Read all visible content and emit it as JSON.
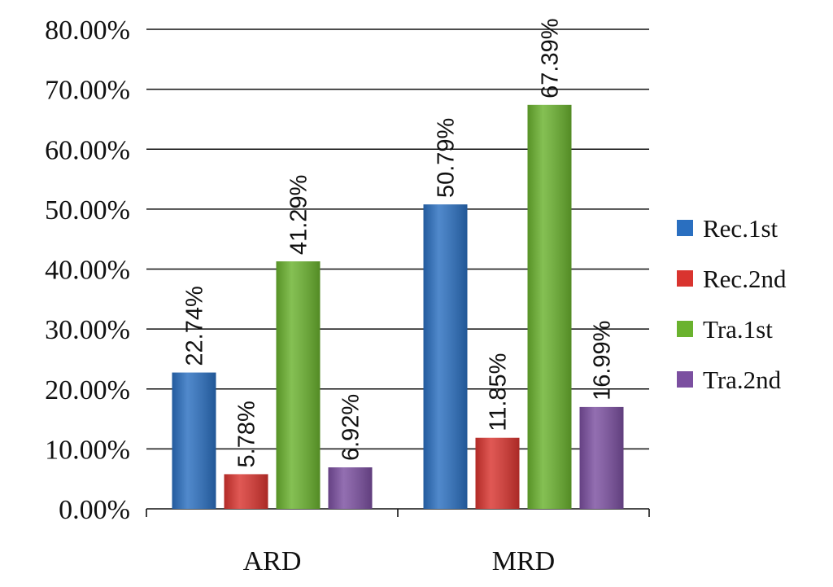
{
  "chart_data": {
    "type": "bar",
    "title": "",
    "xlabel": "",
    "ylabel": "",
    "categories": [
      "ARD",
      "MRD"
    ],
    "series": [
      {
        "name": "Rec.1st",
        "values": [
          22.74,
          50.79
        ],
        "labels": [
          "22.74%",
          "50.79%"
        ],
        "color": "#2a6fc0"
      },
      {
        "name": "Rec.2nd",
        "values": [
          5.78,
          11.85
        ],
        "labels": [
          "5.78%",
          "11.85%"
        ],
        "color": "#d9342f"
      },
      {
        "name": "Tra.1st",
        "values": [
          41.29,
          67.39
        ],
        "labels": [
          "41.29%",
          "67.39%"
        ],
        "color": "#6ab22e"
      },
      {
        "name": "Tra.2nd",
        "values": [
          6.92,
          16.99
        ],
        "labels": [
          "6.92%",
          "16.99%"
        ],
        "color": "#7b4fa0"
      }
    ],
    "ylim": [
      0,
      80
    ],
    "yticks": [
      0,
      10,
      20,
      30,
      40,
      50,
      60,
      70,
      80
    ],
    "ytick_labels": [
      "0.00%",
      "10.00%",
      "20.00%",
      "30.00%",
      "40.00%",
      "50.00%",
      "60.00%",
      "70.00%",
      "80.00%"
    ],
    "grid": true,
    "legend_position": "right"
  }
}
